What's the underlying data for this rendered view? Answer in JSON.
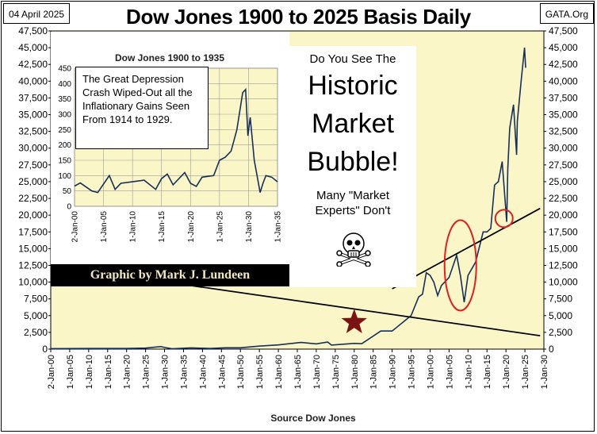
{
  "header": {
    "date": "04 April 2025",
    "title": "Dow Jones 1900 to 2025 Basis Daily",
    "site": "GATA.Org"
  },
  "footer": {
    "source": "Source Dow Jones"
  },
  "colors": {
    "plot_bg": "#FAF6C8",
    "line": "#17305A",
    "marker": "#E02020",
    "trend": "#000000",
    "star": "#7A1414"
  },
  "inset": {
    "title": "Dow Jones 1900 to 1935",
    "note": "The Great Depression Crash Wiped-Out all the Inflationary Gains Seen From 1914  to 1929.",
    "credit": "Graphic by Mark J. Lundeen"
  },
  "bubble_panel": {
    "question": "Do You See The",
    "word1": "Historic",
    "word2": "Market",
    "word3": "Bubble!",
    "sub1": "Many \"Market",
    "sub2": "Experts\"  Don't",
    "icon": "skull-crossbones-icon"
  },
  "chart_data": [
    {
      "type": "line",
      "title": "Dow Jones 1900 to 2025 Basis Daily",
      "xlabel": "Source Dow Jones",
      "ylabel": "",
      "ylim": [
        0,
        47500
      ],
      "xlim": [
        1900,
        2030
      ],
      "grid": false,
      "y_ticks": [
        "0",
        "2,500",
        "5,000",
        "7,500",
        "10,000",
        "12,500",
        "15,000",
        "17,500",
        "20,000",
        "22,500",
        "25,000",
        "27,500",
        "30,000",
        "32,500",
        "35,000",
        "37,500",
        "40,000",
        "42,500",
        "45,000",
        "47,500"
      ],
      "x_ticks": [
        "2-Jan-00",
        "1-Jan-05",
        "1-Jan-10",
        "1-Jan-15",
        "1-Jan-20",
        "1-Jan-25",
        "1-Jan-30",
        "1-Jan-35",
        "1-Jan-40",
        "1-Jan-45",
        "1-Jan-50",
        "1-Jan-55",
        "1-Jan-60",
        "1-Jan-65",
        "1-Jan-70",
        "1-Jan-75",
        "1-Jan-80",
        "1-Jan-85",
        "1-Jan-90",
        "1-Jan-95",
        "1-Jan-00",
        "1-Jan-05",
        "1-Jan-10",
        "1-Jan-15",
        "1-Jan-20",
        "1-Jan-25",
        "1-Jan-30"
      ],
      "series": [
        {
          "x": [
            1900,
            1910,
            1920,
            1925,
            1929,
            1930,
            1932,
            1937,
            1942,
            1946,
            1950,
            1955,
            1960,
            1966,
            1970,
            1973,
            1974,
            1980,
            1982,
            1987,
            1990,
            1995,
            1997,
            1998,
            1999,
            2000,
            2001,
            2002,
            2003,
            2005,
            2007,
            2008,
            2009,
            2010,
            2012,
            2014,
            2015,
            2016,
            2017,
            2018,
            2019,
            2020.2,
            2020.5,
            2021,
            2022,
            2022.8,
            2023,
            2024,
            2024.9,
            2025.2
          ],
          "values": [
            66,
            90,
            90,
            150,
            380,
            250,
            45,
            190,
            100,
            200,
            200,
            450,
            630,
            990,
            780,
            1050,
            600,
            850,
            800,
            2700,
            2700,
            5000,
            7800,
            8200,
            11400,
            11000,
            10000,
            8000,
            9500,
            10700,
            14000,
            11000,
            7000,
            11000,
            13000,
            17500,
            17500,
            18000,
            24500,
            25000,
            28000,
            19000,
            27000,
            33000,
            36500,
            29000,
            34000,
            40000,
            45000,
            42000
          ]
        }
      ],
      "annotations": {
        "trend_lines": [
          {
            "x": [
              1990,
              2029
            ],
            "y": [
              9000,
              21000
            ]
          },
          {
            "x": [
              1900,
              2029
            ],
            "y": [
              12500,
              2000
            ]
          }
        ],
        "ellipses": [
          {
            "x": 2008,
            "y": 12500
          },
          {
            "x": 2019.5,
            "y": 19500
          }
        ],
        "star": {
          "x": 1980,
          "y": 4000
        }
      }
    },
    {
      "type": "line",
      "title": "Dow Jones 1900 to 1935",
      "ylim": [
        0,
        450
      ],
      "xlim": [
        1900,
        1935
      ],
      "grid": true,
      "y_ticks": [
        "0",
        "50",
        "100",
        "150",
        "200",
        "250",
        "300",
        "350",
        "400",
        "450"
      ],
      "x_ticks": [
        "2-Jan-00",
        "1-Jan-05",
        "1-Jan-10",
        "1-Jan-15",
        "1-Jan-20",
        "1-Jan-25",
        "1-Jan-30",
        "1-Jan-35"
      ],
      "series": [
        {
          "x": [
            1900,
            1901,
            1903,
            1904,
            1906,
            1907,
            1908,
            1910,
            1912,
            1914,
            1915,
            1916,
            1917,
            1919,
            1920,
            1921,
            1922,
            1924,
            1925,
            1926,
            1927,
            1928,
            1929,
            1929.5,
            1929.9,
            1930.3,
            1931,
            1932,
            1932.5,
            1933,
            1934,
            1935
          ],
          "values": [
            66,
            76,
            50,
            45,
            100,
            55,
            75,
            80,
            85,
            55,
            90,
            105,
            70,
            110,
            75,
            65,
            95,
            100,
            150,
            160,
            180,
            250,
            370,
            381,
            230,
            290,
            150,
            45,
            75,
            100,
            95,
            80
          ]
        }
      ]
    }
  ]
}
